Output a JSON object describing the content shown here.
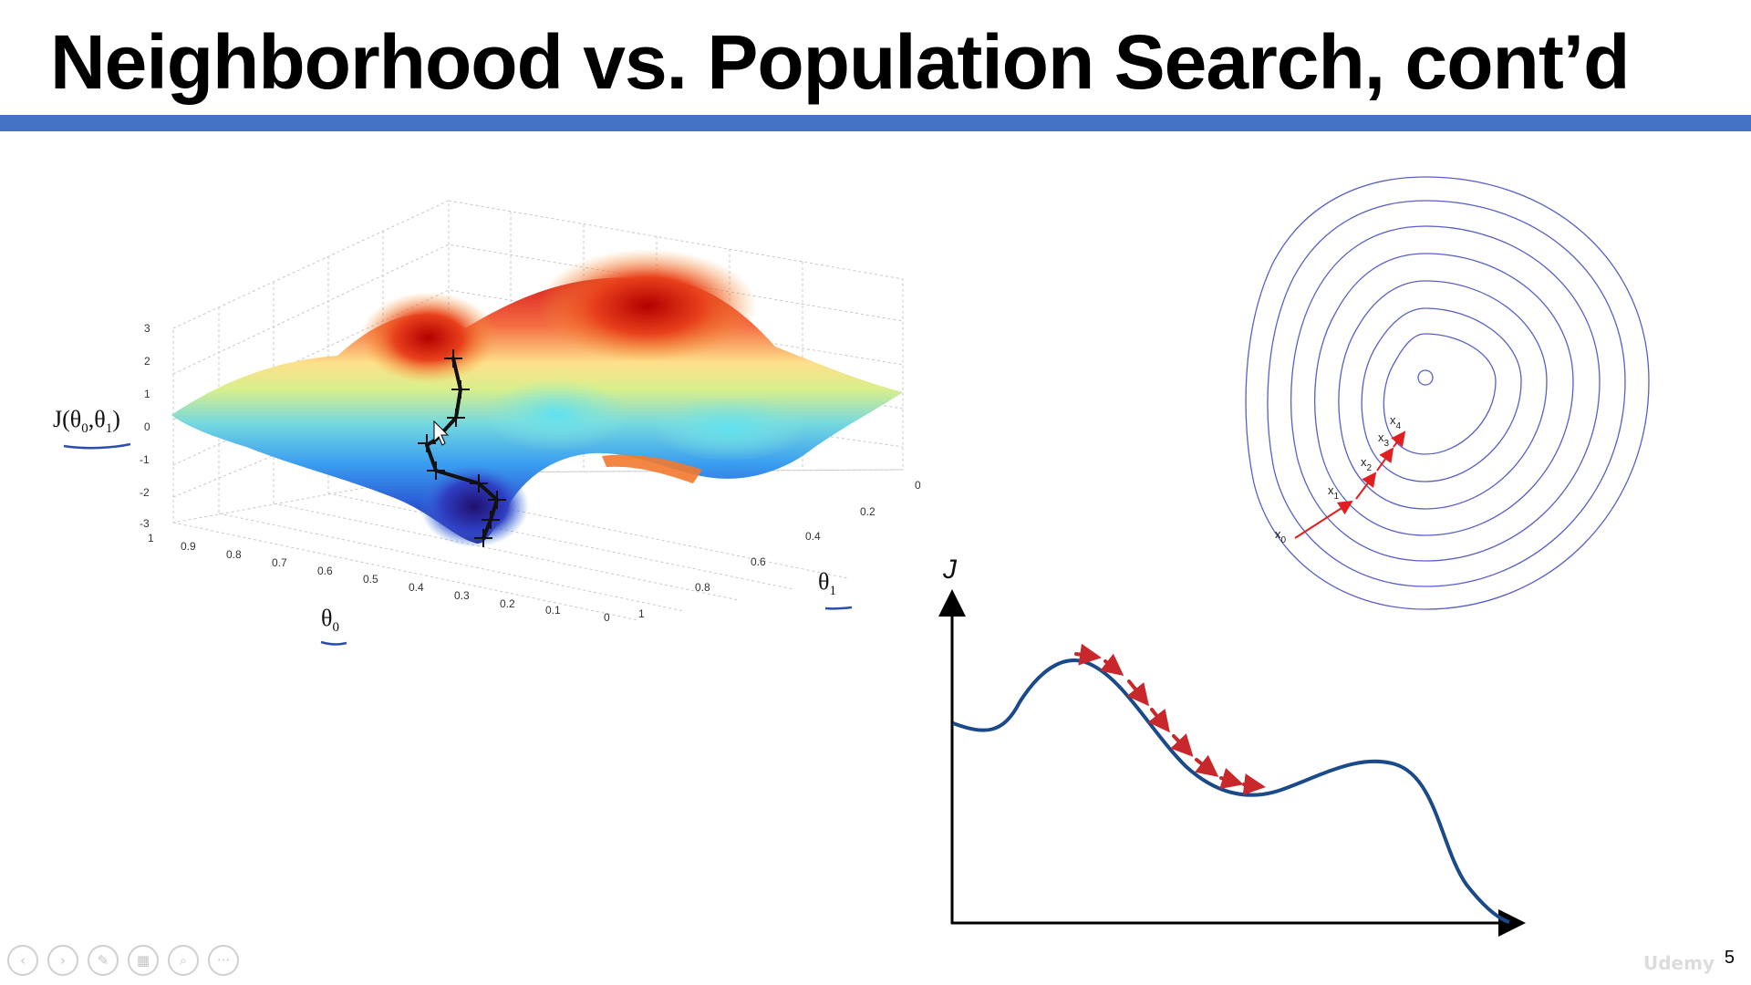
{
  "slide": {
    "title": "Neighborhood vs. Population Search, cont’d",
    "number": "5",
    "accent_color": "#4472c4"
  },
  "surface_plot": {
    "z_axis_label_main": "J(θ",
    "z_axis_label_sub1": "0",
    "z_axis_label_mid": ",θ",
    "z_axis_label_sub2": "1",
    "z_axis_label_end": ")",
    "x_axis_label_main": "θ",
    "x_axis_label_sub": "0",
    "y_axis_label_main": "θ",
    "y_axis_label_sub": "1",
    "z_ticks": [
      "3",
      "2",
      "1",
      "0",
      "-1",
      "-2",
      "-3"
    ],
    "x_ticks": [
      "1",
      "0.9",
      "0.8",
      "0.7",
      "0.6",
      "0.5",
      "0.4",
      "0.3",
      "0.2",
      "0.1",
      "0"
    ],
    "y_ticks": [
      "0",
      "0.2",
      "0.4",
      "0.6",
      "0.8",
      "1"
    ],
    "colormap": "jet",
    "path_color": "#111111",
    "annotation_color": "#2b4db0"
  },
  "contour_plot": {
    "ring_color": "#5a5fc8",
    "arrow_color": "#e02020",
    "labels": [
      {
        "main": "x",
        "sub": "0"
      },
      {
        "main": "x",
        "sub": "1"
      },
      {
        "main": "x",
        "sub": "2"
      },
      {
        "main": "x",
        "sub": "3"
      },
      {
        "main": "x",
        "sub": "4"
      }
    ]
  },
  "curve_plot": {
    "y_axis_label": "J",
    "curve_color": "#1a4a8a",
    "arrow_color": "#c8272c"
  },
  "nav": [
    {
      "name": "prev-slide-button",
      "icon": "‹"
    },
    {
      "name": "next-slide-button",
      "icon": "›"
    },
    {
      "name": "pen-tool-button",
      "icon": "✎"
    },
    {
      "name": "slide-sorter-button",
      "icon": "▦"
    },
    {
      "name": "zoom-button",
      "icon": "⌕"
    },
    {
      "name": "more-options-button",
      "icon": "···"
    }
  ],
  "watermark": "Udemy"
}
